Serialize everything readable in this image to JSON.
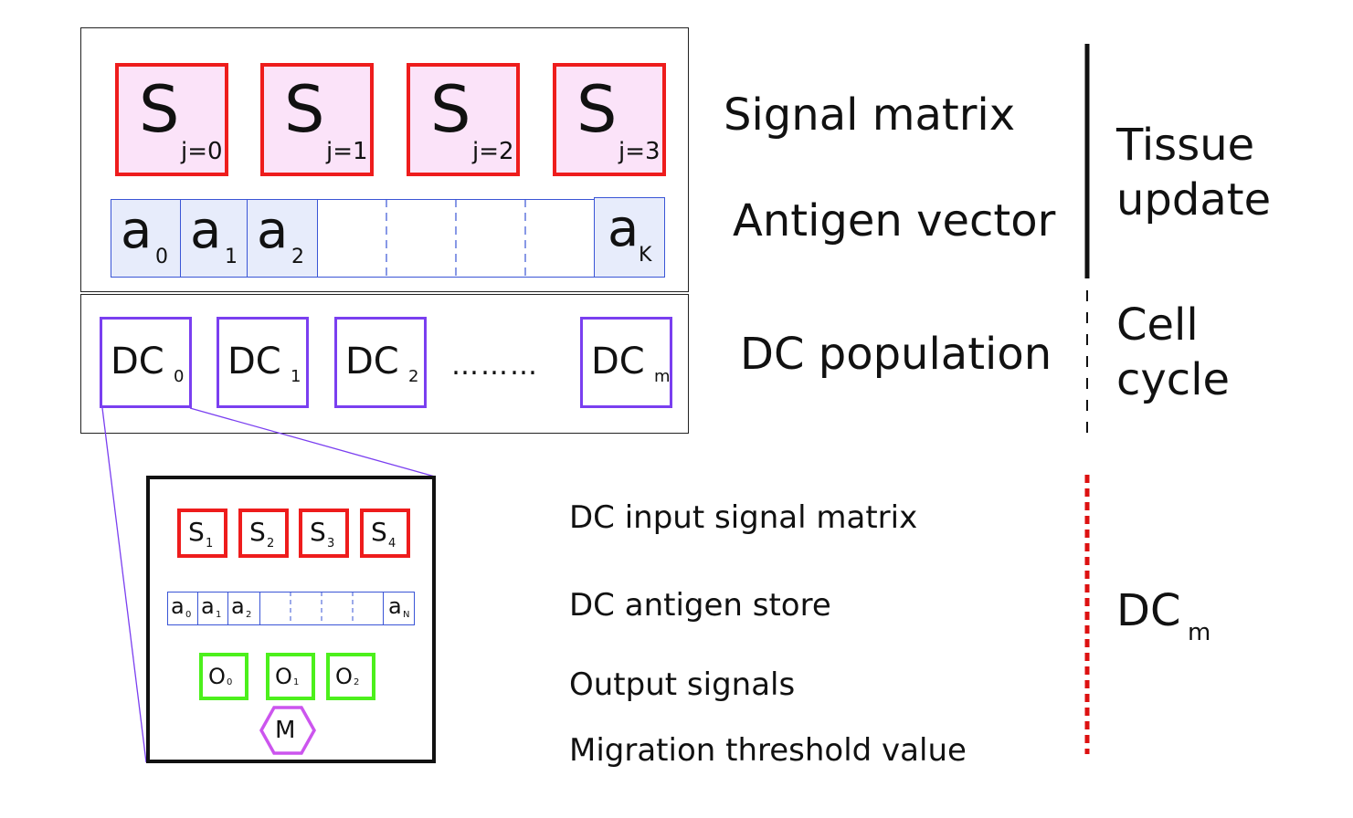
{
  "signals": [
    {
      "symbol": "S",
      "sub": "j=0"
    },
    {
      "symbol": "S",
      "sub": "j=1"
    },
    {
      "symbol": "S",
      "sub": "j=2"
    },
    {
      "symbol": "S",
      "sub": "j=3"
    }
  ],
  "antigens": [
    {
      "symbol": "a",
      "sub": "0"
    },
    {
      "symbol": "a",
      "sub": "1"
    },
    {
      "symbol": "a",
      "sub": "2"
    },
    {
      "symbol": "a",
      "sub": "K"
    }
  ],
  "dcs": [
    {
      "symbol": "DC",
      "sub": "0"
    },
    {
      "symbol": "DC",
      "sub": "1"
    },
    {
      "symbol": "DC",
      "sub": "2"
    },
    {
      "symbol": "DC",
      "sub": "m"
    }
  ],
  "dc_ellipsis": "………",
  "labels": {
    "signal_matrix": "Signal matrix",
    "antigen_vector": "Antigen vector",
    "dc_population": "DC population",
    "tissue_update_1": "Tissue",
    "tissue_update_2": "update",
    "cell_cycle_1": "Cell",
    "cell_cycle_2": "cycle",
    "dc_m_main": "DC",
    "dc_m_sub": "m"
  },
  "detail": {
    "signals": [
      {
        "symbol": "S",
        "sub": "1"
      },
      {
        "symbol": "S",
        "sub": "2"
      },
      {
        "symbol": "S",
        "sub": "3"
      },
      {
        "symbol": "S",
        "sub": "4"
      }
    ],
    "antigens": [
      {
        "symbol": "a",
        "sub": "0"
      },
      {
        "symbol": "a",
        "sub": "1"
      },
      {
        "symbol": "a",
        "sub": "2"
      },
      {
        "symbol": "a",
        "sub": "N"
      }
    ],
    "outputs": [
      {
        "symbol": "O",
        "sub": "0"
      },
      {
        "symbol": "O",
        "sub": "1"
      },
      {
        "symbol": "O",
        "sub": "2"
      }
    ],
    "migration": "M",
    "labels": {
      "input_signal": "DC input signal matrix",
      "antigen_store": "DC antigen store",
      "output_signals": "Output signals",
      "migration_threshold": "Migration threshold value"
    }
  },
  "colors": {
    "signal_border": "#ee1c1c",
    "signal_fill": "#fbe3f9",
    "antigen_border": "#3a55d6",
    "antigen_fill": "#e7ecfb",
    "dc_border": "#7a3ff0",
    "output_border": "#4cf01c",
    "migration_border": "#cc55ee"
  }
}
